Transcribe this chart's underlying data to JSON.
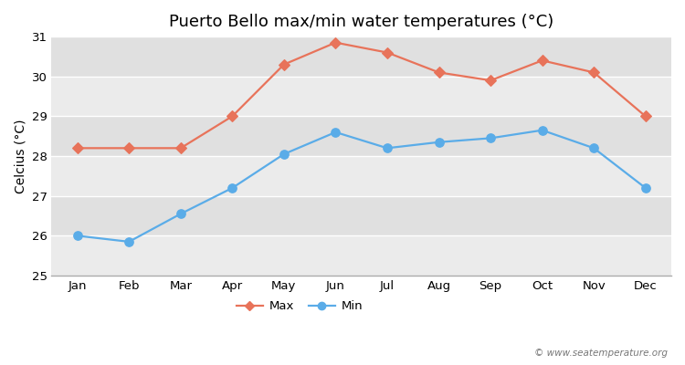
{
  "title": "Puerto Bello max/min water temperatures (°C)",
  "ylabel": "Celcius (°C)",
  "months": [
    "Jan",
    "Feb",
    "Mar",
    "Apr",
    "May",
    "Jun",
    "Jul",
    "Aug",
    "Sep",
    "Oct",
    "Nov",
    "Dec"
  ],
  "max_temps": [
    28.2,
    28.2,
    28.2,
    29.0,
    30.3,
    30.85,
    30.6,
    30.1,
    29.9,
    30.4,
    30.1,
    29.0
  ],
  "min_temps": [
    26.0,
    25.85,
    26.55,
    27.2,
    28.05,
    28.6,
    28.2,
    28.35,
    28.45,
    28.65,
    28.2,
    27.2
  ],
  "max_color": "#e8735a",
  "min_color": "#5aace8",
  "fig_bg_color": "#ffffff",
  "band_light": "#ebebeb",
  "band_dark": "#e0e0e0",
  "grid_color": "#ffffff",
  "ylim": [
    25,
    31
  ],
  "yticks": [
    25,
    26,
    27,
    28,
    29,
    30,
    31
  ],
  "legend_labels": [
    "Max",
    "Min"
  ],
  "watermark": "© www.seatemperature.org",
  "title_fontsize": 13,
  "axis_label_fontsize": 10,
  "tick_fontsize": 9.5
}
